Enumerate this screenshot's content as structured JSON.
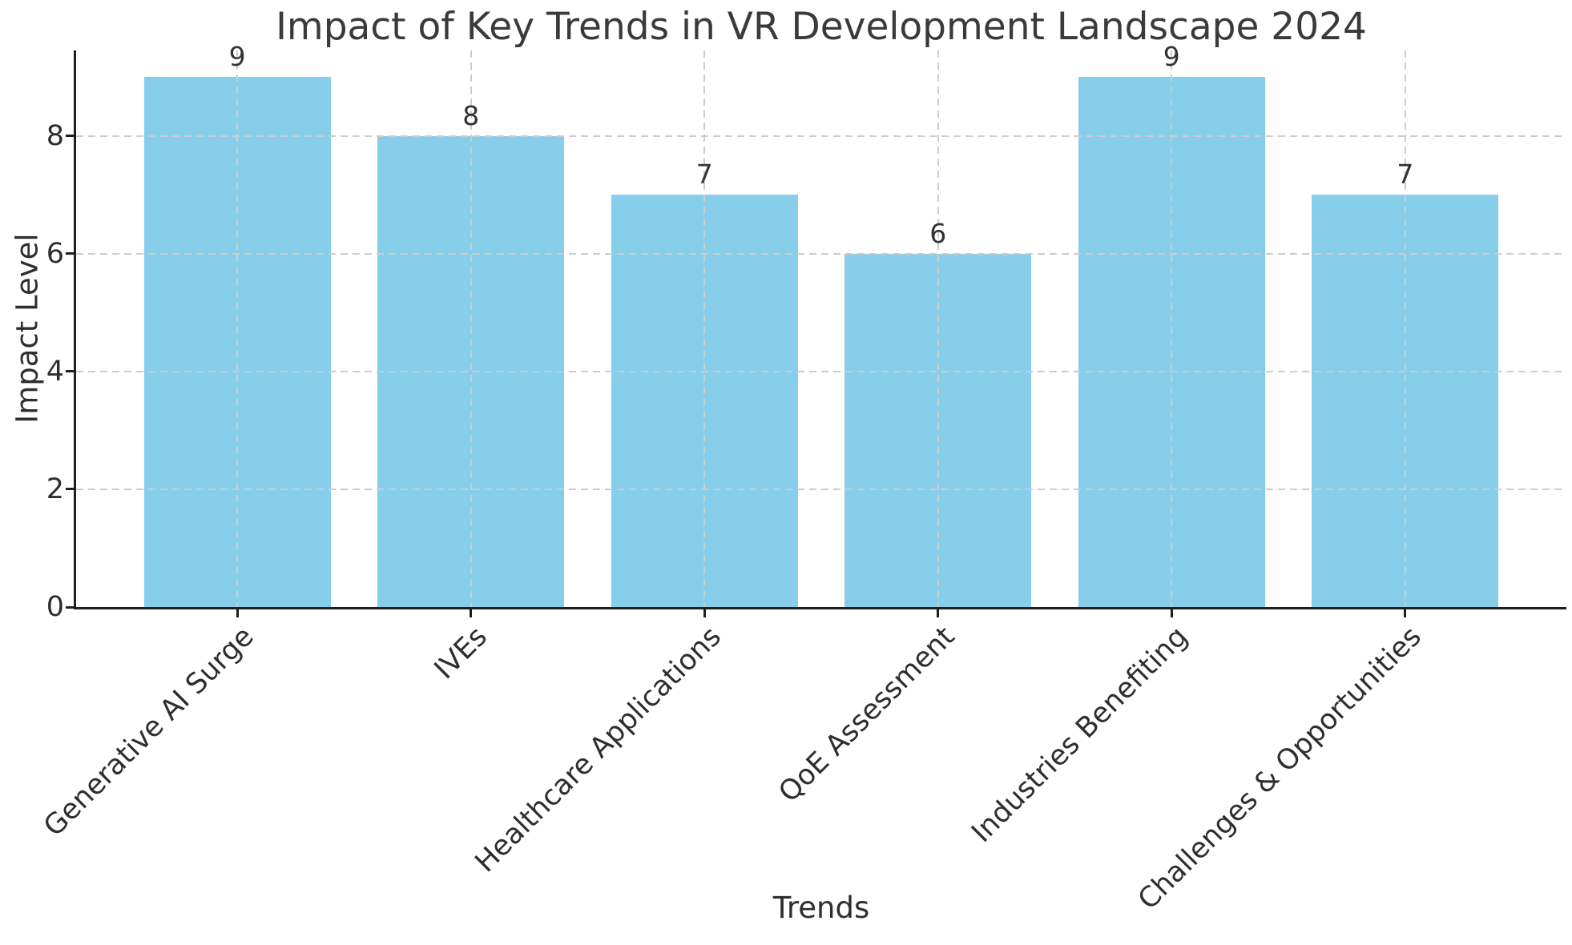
{
  "chart_data": {
    "type": "bar",
    "title": "Impact of Key Trends in VR Development Landscape 2024",
    "xlabel": "Trends",
    "ylabel": "Impact Level",
    "categories": [
      "Generative AI Surge",
      "IVEs",
      "Healthcare Applications",
      "QoE Assessment",
      "Industries Benefiting",
      "Challenges & Opportunities"
    ],
    "values": [
      9,
      8,
      7,
      6,
      9,
      7
    ],
    "bar_value_labels": [
      "9",
      "8",
      "7",
      "6",
      "9",
      "7"
    ],
    "yticks": [
      0,
      2,
      4,
      6,
      8
    ],
    "ylim": [
      0,
      9.45
    ],
    "bar_width_fraction": 0.8,
    "x_edge_margin_units": 0.69,
    "xtick_rotation_deg": 45,
    "grid": "both-dashed",
    "legend": "none",
    "colors": {
      "bar_fill": "#87CEEB",
      "grid_line": "#cccccc",
      "spine": "#1f1f1f",
      "title_text": "#3a3a3a",
      "label_text": "#2e2e2e",
      "background": "#ffffff"
    }
  }
}
